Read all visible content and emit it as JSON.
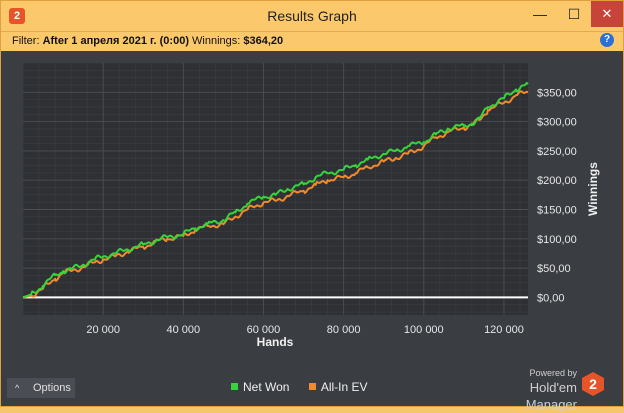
{
  "window": {
    "title": "Results Graph",
    "app_icon_glyph": "2",
    "controls": {
      "minimize": "—",
      "maximize": "☐",
      "close": "✕"
    }
  },
  "filter": {
    "label": "Filter:",
    "value": "After 1 апреля 2021 г. (0:00)",
    "winnings_label": "Winnings:",
    "winnings_value": "$364,20",
    "help_glyph": "?"
  },
  "footer": {
    "options_label": "Options",
    "options_icon": "chevron-up-icon",
    "powered_by": "Powered by",
    "brand": "Hold'em Manager",
    "logo_glyph": "2"
  },
  "colors": {
    "background": "#3a3d42",
    "plot_background": "#2e3034",
    "net_won": "#36d43b",
    "all_in_ev": "#f08a2c",
    "zero_line": "#ffffff"
  },
  "chart_data": {
    "type": "line",
    "xlabel": "Hands",
    "ylabel": "Winnings",
    "x_ticks": [
      20000,
      40000,
      60000,
      80000,
      100000,
      120000
    ],
    "x_tick_labels": [
      "20 000",
      "40 000",
      "60 000",
      "80 000",
      "100 000",
      "120 000"
    ],
    "y_ticks": [
      0,
      50,
      100,
      150,
      200,
      250,
      300,
      350
    ],
    "y_tick_labels": [
      "$0,00",
      "$50,00",
      "$100,00",
      "$150,00",
      "$200,00",
      "$250,00",
      "$300,00",
      "$350,00"
    ],
    "xlim": [
      0,
      126000
    ],
    "ylim": [
      -30,
      400
    ],
    "grid": true,
    "legend_position": "bottom",
    "series": [
      {
        "name": "Net Won",
        "color": "#36d43b",
        "x": [
          0,
          2000,
          5000,
          8000,
          10000,
          12000,
          15000,
          18000,
          20000,
          23000,
          26000,
          30000,
          33000,
          36000,
          40000,
          43000,
          46000,
          50000,
          53000,
          56000,
          60000,
          63000,
          66000,
          70000,
          73000,
          76000,
          80000,
          83000,
          86000,
          90000,
          93000,
          96000,
          100000,
          103000,
          106000,
          110000,
          112000,
          114000,
          116000,
          120000,
          123000,
          126000
        ],
        "y": [
          0,
          5,
          20,
          38,
          45,
          48,
          56,
          65,
          70,
          75,
          82,
          90,
          97,
          103,
          108,
          118,
          125,
          132,
          145,
          160,
          172,
          175,
          185,
          193,
          205,
          212,
          218,
          226,
          235,
          245,
          250,
          258,
          265,
          278,
          288,
          293,
          297,
          305,
          325,
          340,
          355,
          364
        ]
      },
      {
        "name": "All-In EV",
        "color": "#f08a2c",
        "x": [
          0,
          2000,
          5000,
          8000,
          10000,
          12000,
          15000,
          18000,
          20000,
          23000,
          26000,
          30000,
          33000,
          36000,
          40000,
          43000,
          46000,
          50000,
          53000,
          56000,
          60000,
          63000,
          66000,
          70000,
          73000,
          76000,
          80000,
          83000,
          86000,
          90000,
          93000,
          96000,
          100000,
          103000,
          106000,
          110000,
          112000,
          114000,
          116000,
          120000,
          123000,
          126000
        ],
        "y": [
          0,
          3,
          15,
          32,
          42,
          45,
          52,
          60,
          65,
          70,
          78,
          86,
          95,
          100,
          105,
          115,
          122,
          125,
          138,
          150,
          162,
          165,
          173,
          182,
          192,
          200,
          205,
          212,
          222,
          232,
          238,
          245,
          258,
          273,
          282,
          290,
          294,
          303,
          320,
          332,
          345,
          350
        ]
      }
    ]
  }
}
